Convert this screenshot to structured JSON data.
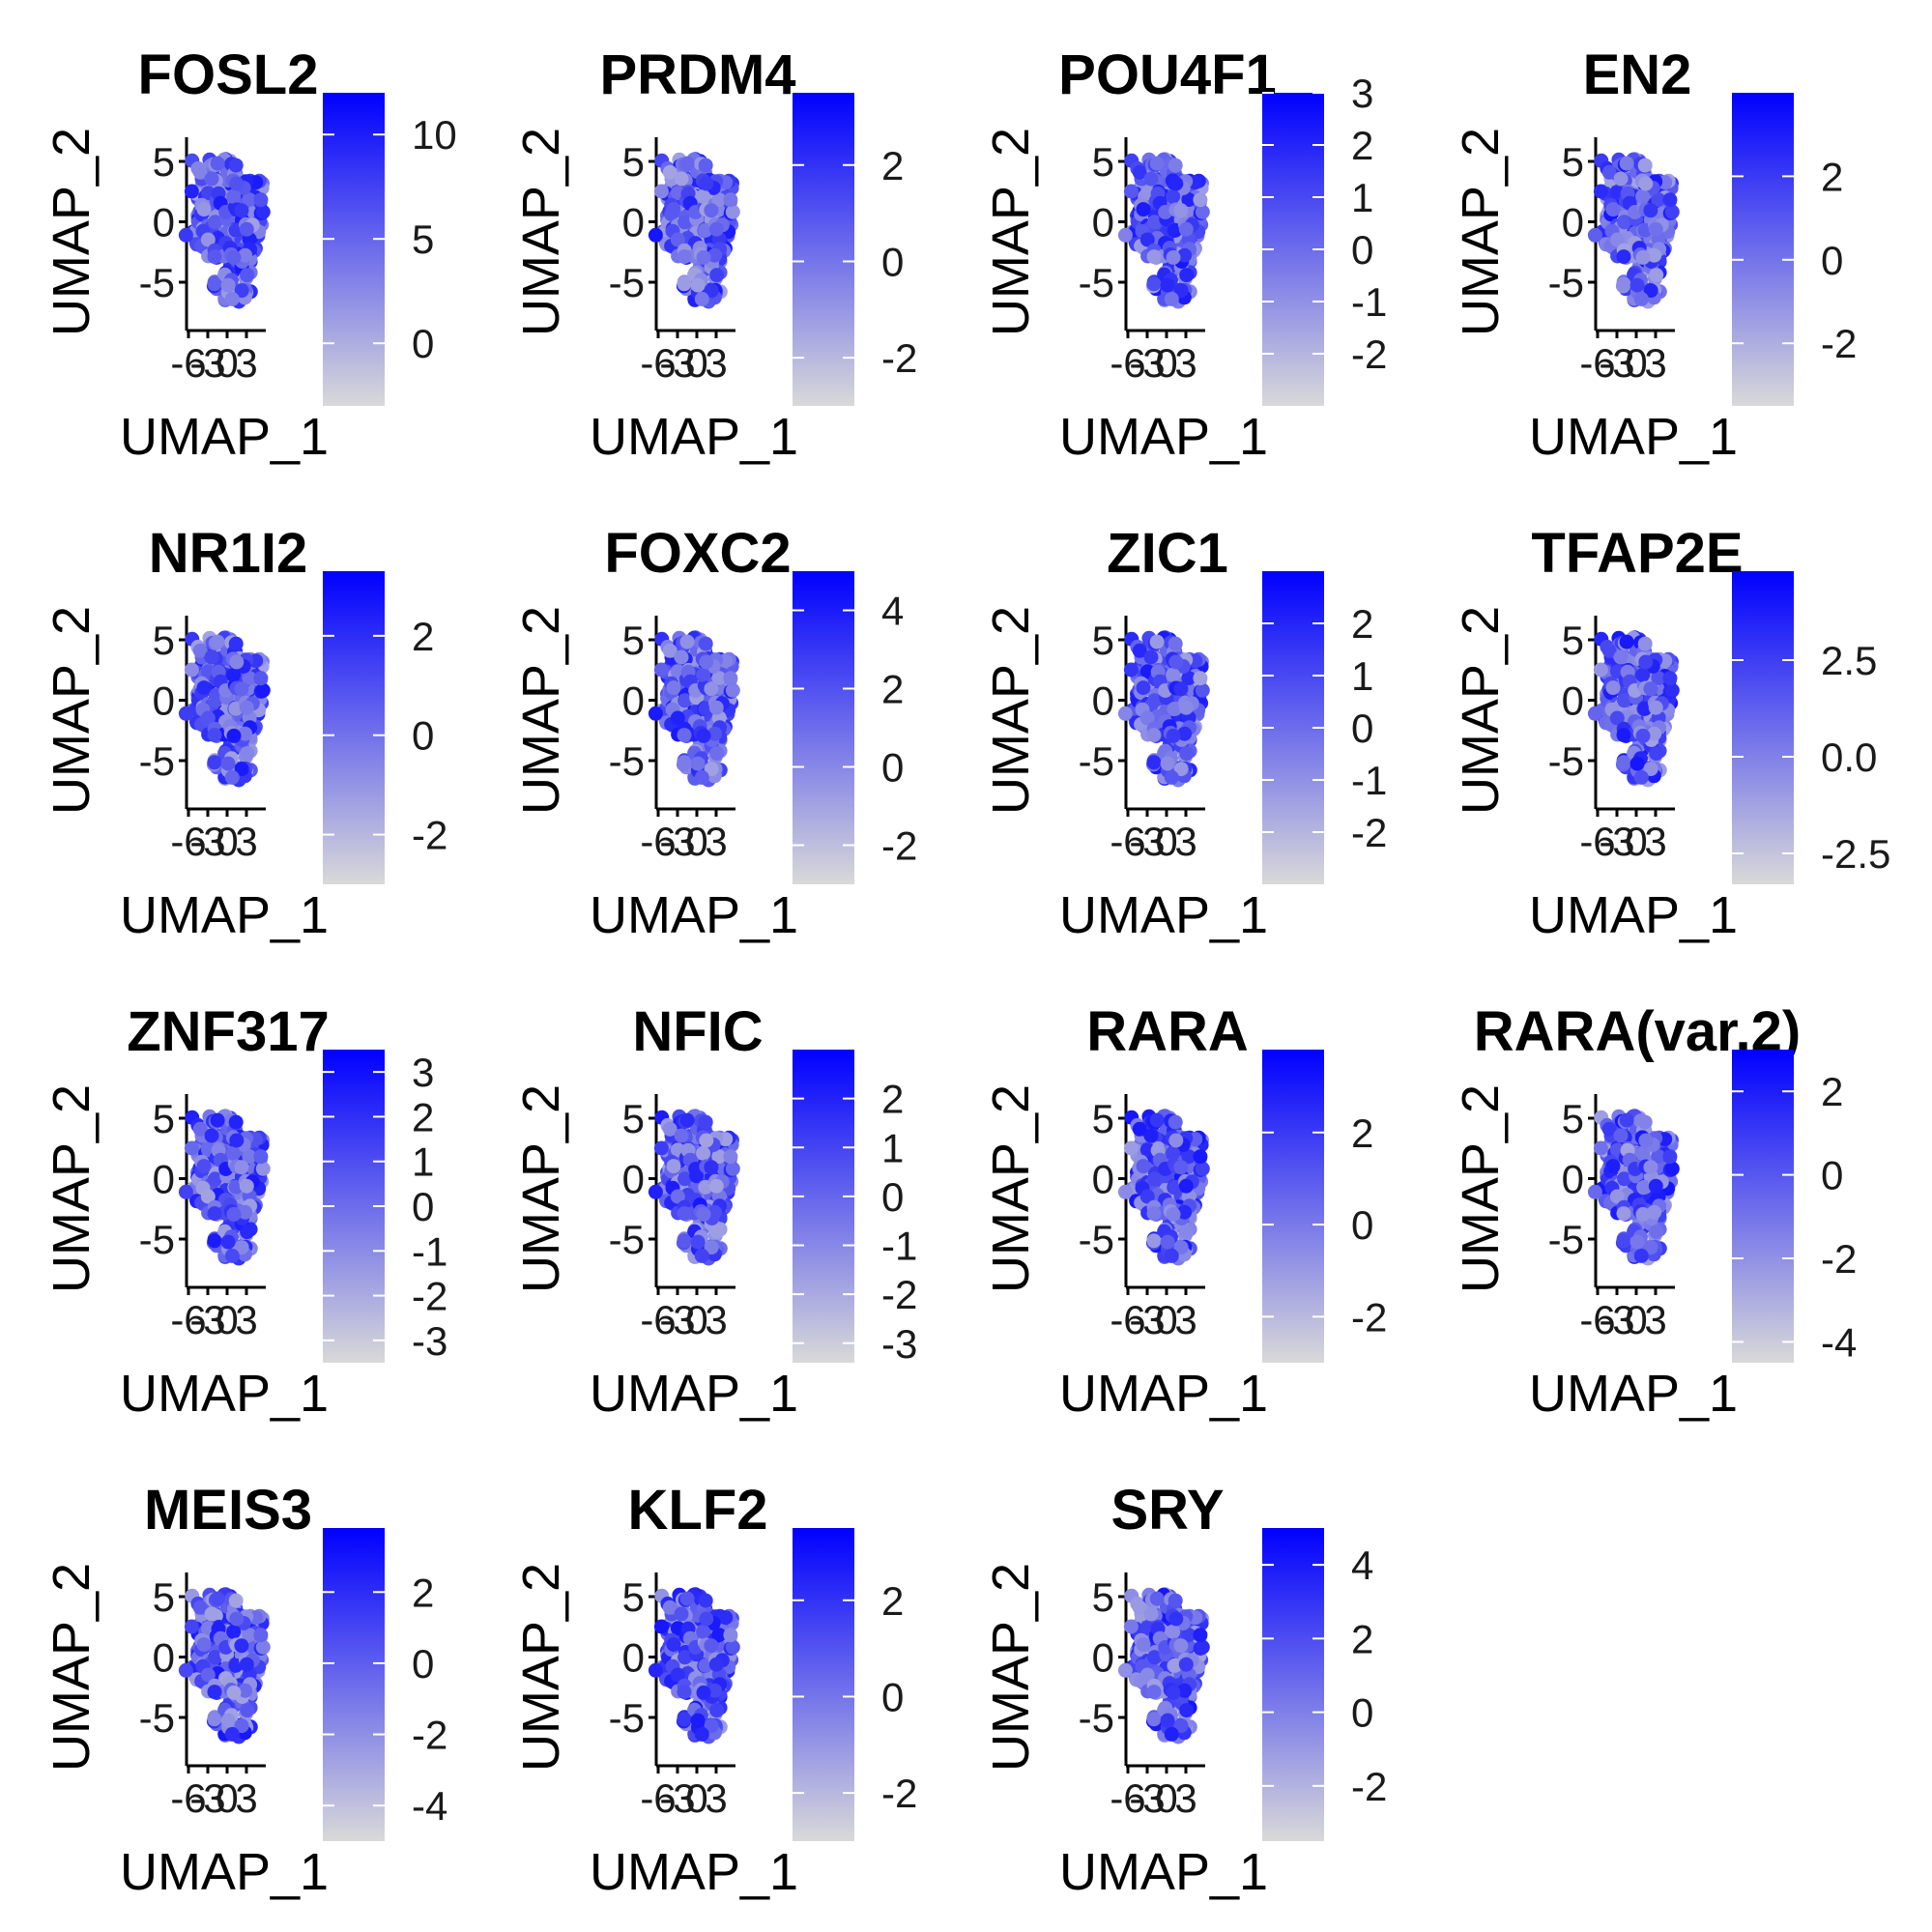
{
  "chart_data": {
    "type": "scatter",
    "layout": "4x4 grid of feature plots (UMAP embedding colored by expression)",
    "color_scale": {
      "low": "#d9d9d9",
      "high": "#0000ff"
    },
    "x_axis": {
      "label": "UMAP_1",
      "ticks": [
        "-6",
        "-3",
        "0",
        "3"
      ]
    },
    "y_axis": {
      "label": "UMAP_2",
      "ticks": [
        "5",
        "0",
        "-5"
      ],
      "range": [
        -9,
        7
      ]
    },
    "panels": [
      {
        "title": "FOSL2",
        "legend_range": [
          -3,
          12
        ],
        "legend_ticks": [
          "10",
          "5",
          "0"
        ]
      },
      {
        "title": "PRDM4",
        "legend_range": [
          -3,
          3.5
        ],
        "legend_ticks": [
          "2",
          "0",
          "-2"
        ]
      },
      {
        "title": "POU4F1",
        "legend_range": [
          -3,
          3
        ],
        "legend_ticks": [
          "3",
          "2",
          "1",
          "0",
          "-1",
          "-2"
        ]
      },
      {
        "title": "EN2",
        "legend_range": [
          -3.5,
          4
        ],
        "legend_ticks": [
          "2",
          "0",
          "-2"
        ]
      },
      {
        "title": "NR1I2",
        "legend_range": [
          -3,
          3.3
        ],
        "legend_ticks": [
          "2",
          "0",
          "-2"
        ]
      },
      {
        "title": "FOXC2",
        "legend_range": [
          -3,
          5
        ],
        "legend_ticks": [
          "4",
          "2",
          "0",
          "-2"
        ]
      },
      {
        "title": "ZIC1",
        "legend_range": [
          -3,
          3
        ],
        "legend_ticks": [
          "2",
          "1",
          "0",
          "-1",
          "-2"
        ]
      },
      {
        "title": "TFAP2E",
        "legend_range": [
          -3.3,
          4.8
        ],
        "legend_ticks": [
          "2.5",
          "0.0",
          "-2.5"
        ]
      },
      {
        "title": "ZNF317",
        "legend_range": [
          -3.5,
          3.5
        ],
        "legend_ticks": [
          "3",
          "2",
          "1",
          "0",
          "-1",
          "-2",
          "-3"
        ]
      },
      {
        "title": "NFIC",
        "legend_range": [
          -3.4,
          3
        ],
        "legend_ticks": [
          "2",
          "1",
          "0",
          "-1",
          "-2",
          "-3"
        ]
      },
      {
        "title": "RARA",
        "legend_range": [
          -3,
          3.8
        ],
        "legend_ticks": [
          "2",
          "0",
          "-2"
        ]
      },
      {
        "title": "RARA(var.2)",
        "legend_range": [
          -4.5,
          3
        ],
        "legend_ticks": [
          "2",
          "0",
          "-2",
          "-4"
        ]
      },
      {
        "title": "MEIS3",
        "legend_range": [
          -5,
          3.8
        ],
        "legend_ticks": [
          "2",
          "0",
          "-2",
          "-4"
        ]
      },
      {
        "title": "KLF2",
        "legend_range": [
          -3,
          3.5
        ],
        "legend_ticks": [
          "2",
          "0",
          "-2"
        ]
      },
      {
        "title": "SRY",
        "legend_range": [
          -3.5,
          5
        ],
        "legend_ticks": [
          "4",
          "2",
          "0",
          "-2"
        ]
      }
    ]
  }
}
